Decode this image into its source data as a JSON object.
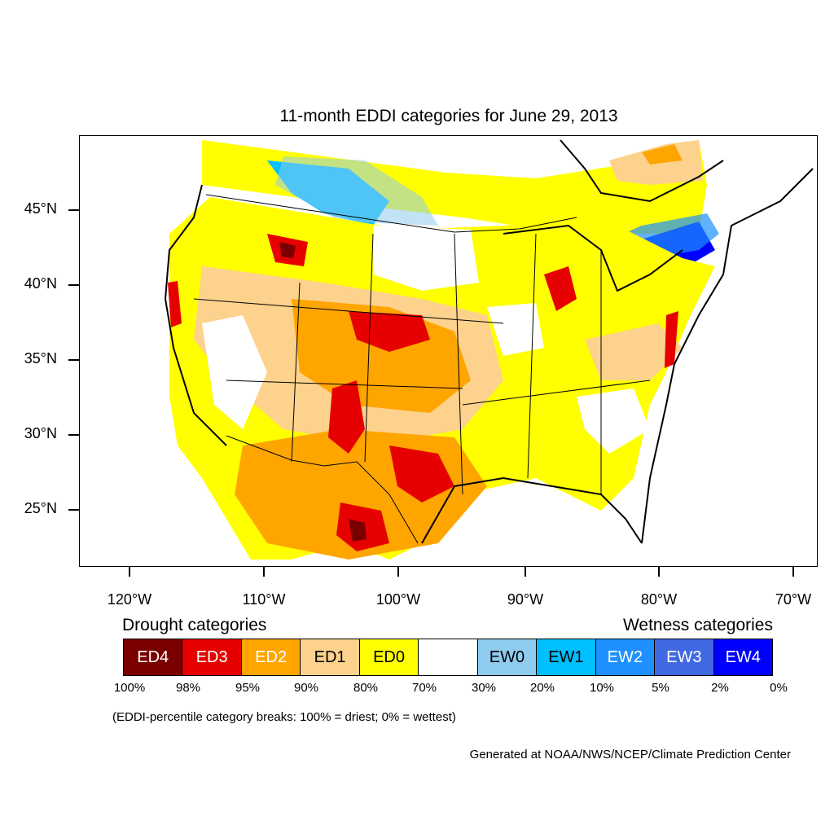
{
  "title": "11-month EDDI categories for June 29, 2013",
  "map": {
    "projection": "conic",
    "lat_labels": [
      "45°N",
      "40°N",
      "35°N",
      "30°N",
      "25°N"
    ],
    "lon_labels": [
      "120°W",
      "110°W",
      "100°W",
      "90°W",
      "80°W",
      "70°W"
    ]
  },
  "legend": {
    "drought_heading": "Drought categories",
    "wetness_heading": "Wetness categories",
    "categories": [
      {
        "label": "ED4",
        "color": "#7a0000",
        "text_color": "#ffffff"
      },
      {
        "label": "ED3",
        "color": "#e60000",
        "text_color": "#ffffff"
      },
      {
        "label": "ED2",
        "color": "#ffa500",
        "text_color": "#ffffff"
      },
      {
        "label": "ED1",
        "color": "#fcd28c",
        "text_color": "#000000"
      },
      {
        "label": "ED0",
        "color": "#ffff00",
        "text_color": "#000000"
      },
      {
        "label": "",
        "color": "#ffffff",
        "text_color": "#000000"
      },
      {
        "label": "EW0",
        "color": "#8fcbef",
        "text_color": "#000000"
      },
      {
        "label": "EW1",
        "color": "#00bfff",
        "text_color": "#000000"
      },
      {
        "label": "EW2",
        "color": "#1e90ff",
        "text_color": "#ffffff"
      },
      {
        "label": "EW3",
        "color": "#4169e1",
        "text_color": "#ffffff"
      },
      {
        "label": "EW4",
        "color": "#0000ff",
        "text_color": "#ffffff"
      }
    ],
    "breaks": [
      "100%",
      "98%",
      "95%",
      "90%",
      "80%",
      "70%",
      "30%",
      "20%",
      "10%",
      "5%",
      "2%",
      "0%"
    ]
  },
  "note": "(EDDI-percentile category breaks: 100% = driest; 0% = wettest)",
  "credit": "Generated at NOAA/NWS/NCEP/Climate Prediction Center"
}
